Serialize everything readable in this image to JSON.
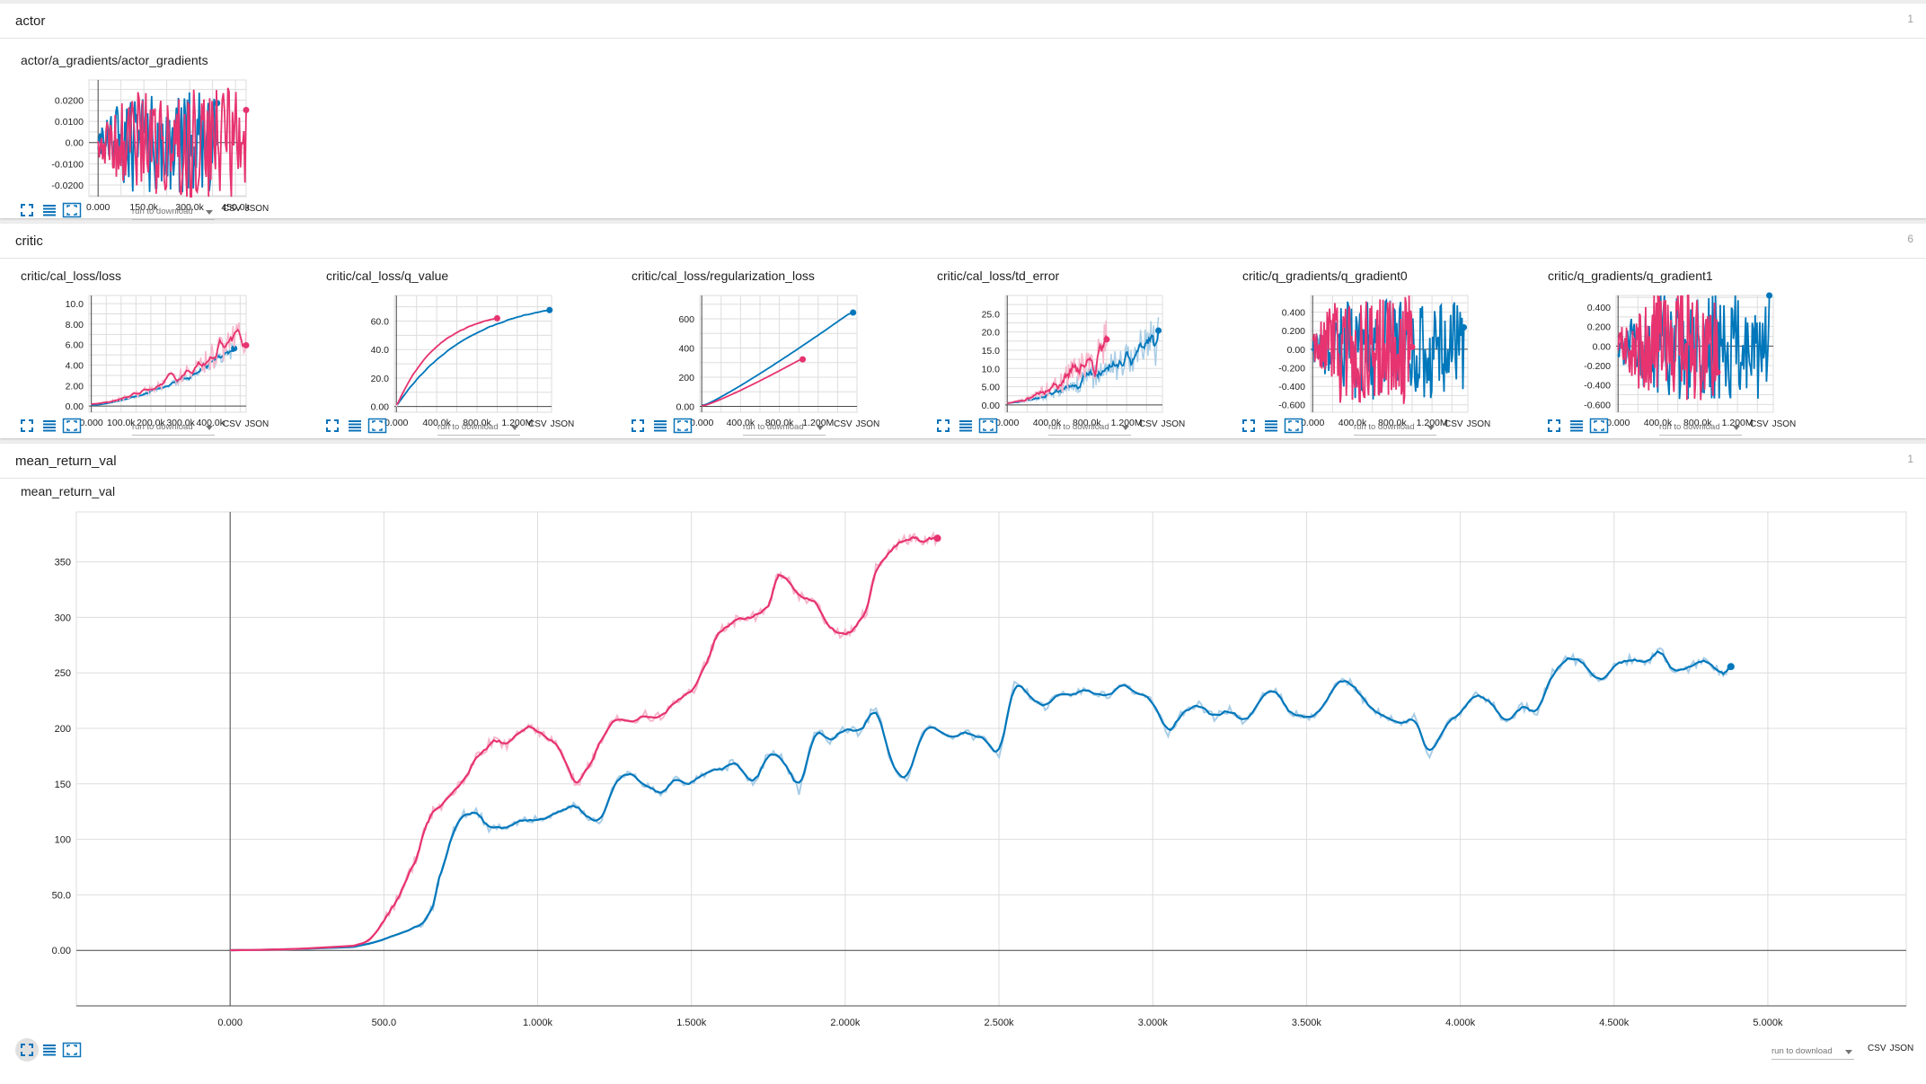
{
  "colors": {
    "blue": "#0077bb",
    "pink": "#e7336f",
    "blue_light": "#a9cde6",
    "pink_light": "#f6b7cb",
    "grid": "#dddddd",
    "axis": "#4a4a4a"
  },
  "icons": {
    "expand": "fullscreen-icon",
    "log": "list-icon",
    "fit": "fit-domain-icon"
  },
  "download": {
    "placeholder": "run to download",
    "formats": [
      "CSV",
      "JSON"
    ]
  },
  "sections": [
    {
      "title": "actor",
      "count": "1",
      "charts": [
        {
          "title": "actor/a_gradients/actor_gradients",
          "chart_data": {
            "type": "line",
            "xticks": [
              "0.000",
              "150.0k",
              "300.0k",
              "450.0k"
            ],
            "yticks": [
              "0.0200",
              "0.0100",
              "0.00",
              "-0.0100",
              "-0.0200"
            ],
            "xlim": [
              -30000,
              485000
            ],
            "ylim": [
              -0.0255,
              0.0295
            ],
            "series": [
              {
                "color": "blue",
                "x_end": 390000,
                "kind": "noise",
                "amp": 0.024,
                "seed": 3,
                "n": 120
              },
              {
                "color": "pink",
                "x_end": 485000,
                "kind": "noise",
                "amp": 0.027,
                "seed": 7,
                "n": 130
              }
            ]
          }
        }
      ]
    },
    {
      "title": "critic",
      "count": "6",
      "charts": [
        {
          "title": "critic/cal_loss/loss",
          "chart_data": {
            "type": "line",
            "xticks": [
              "0.000",
              "100.0k",
              "200.0k",
              "300.0k",
              "400.0k"
            ],
            "yticks": [
              "10.0",
              "8.00",
              "6.00",
              "4.00",
              "2.00",
              "0.00"
            ],
            "xlim": [
              -8000,
              520000
            ],
            "ylim": [
              -0.6,
              10.8
            ],
            "series": [
              {
                "color": "blue",
                "x_end": 480000,
                "kind": "growth",
                "start": 0.1,
                "end": 5.2,
                "amp": 1.1,
                "seed": 11,
                "n": 120
              },
              {
                "color": "pink",
                "x_end": 520000,
                "kind": "growth",
                "start": 0.2,
                "end": 6.5,
                "amp": 2.4,
                "seed": 13,
                "n": 130
              }
            ]
          }
        },
        {
          "title": "critic/cal_loss/q_value",
          "chart_data": {
            "type": "line",
            "xticks": [
              "0.000",
              "400.0k",
              "800.0k",
              "1.200M"
            ],
            "yticks": [
              "60.0",
              "40.0",
              "20.0",
              "0.00"
            ],
            "xlim": [
              -20000,
              1540000
            ],
            "ylim": [
              -4,
              78
            ],
            "series": [
              {
                "color": "blue",
                "x_end": 1520000,
                "kind": "saturate",
                "start": 0,
                "end": 68,
                "k": 2.1,
                "amp": 0.8,
                "seed": 17,
                "n": 160
              },
              {
                "color": "pink",
                "x_end": 1000000,
                "kind": "saturate",
                "start": 0,
                "end": 62,
                "k": 2.4,
                "amp": 0.8,
                "seed": 19,
                "n": 110
              }
            ]
          }
        },
        {
          "title": "critic/cal_loss/regularization_loss",
          "chart_data": {
            "type": "line",
            "xticks": [
              "0.000",
              "400.0k",
              "800.0k",
              "1.200M"
            ],
            "yticks": [
              "600",
              "400",
              "200",
              "0.00"
            ],
            "xlim": [
              -20000,
              1600000
            ],
            "ylim": [
              -40,
              760
            ],
            "series": [
              {
                "color": "blue",
                "x_end": 1560000,
                "kind": "curve",
                "start": 0,
                "end": 655,
                "pow": 1.12,
                "amp": 0,
                "seed": 1,
                "n": 60
              },
              {
                "color": "pink",
                "x_end": 1040000,
                "kind": "curve",
                "start": 0,
                "end": 330,
                "pow": 1.15,
                "amp": 0,
                "seed": 2,
                "n": 50
              }
            ]
          }
        },
        {
          "title": "critic/cal_loss/td_error",
          "chart_data": {
            "type": "line",
            "xticks": [
              "0.000",
              "400.0k",
              "800.0k",
              "1.200M"
            ],
            "yticks": [
              "25.0",
              "20.0",
              "15.0",
              "10.0",
              "5.00",
              "0.00"
            ],
            "xlim": [
              -20000,
              1560000
            ],
            "ylim": [
              -2,
              30
            ],
            "series": [
              {
                "color": "blue",
                "x_end": 1520000,
                "kind": "growth",
                "start": 0.5,
                "end": 16,
                "amp": 9,
                "seed": 23,
                "n": 160
              },
              {
                "color": "pink",
                "x_end": 1000000,
                "kind": "growth",
                "start": 0.5,
                "end": 14,
                "amp": 9,
                "seed": 29,
                "n": 120
              }
            ]
          }
        },
        {
          "title": "critic/q_gradients/q_gradient0",
          "chart_data": {
            "type": "line",
            "xticks": [
              "0.000",
              "400.0k",
              "800.0k",
              "1.200M"
            ],
            "yticks": [
              "0.400",
              "0.200",
              "0.00",
              "-0.200",
              "-0.400",
              "-0.600"
            ],
            "xlim": [
              -20000,
              1560000
            ],
            "ylim": [
              -0.68,
              0.58
            ],
            "series": [
              {
                "color": "blue",
                "x_end": 1520000,
                "kind": "noise",
                "amp": 0.55,
                "seed": 31,
                "n": 160
              },
              {
                "color": "pink",
                "x_end": 1000000,
                "kind": "noise",
                "amp": 0.6,
                "seed": 37,
                "n": 130
              }
            ]
          }
        },
        {
          "title": "critic/q_gradients/q_gradient1",
          "chart_data": {
            "type": "line",
            "xticks": [
              "0.000",
              "400.0k",
              "800.0k",
              "1.200M"
            ],
            "yticks": [
              "0.400",
              "0.200",
              "0.00",
              "-0.200",
              "-0.400",
              "-0.600"
            ],
            "xlim": [
              -20000,
              1560000
            ],
            "ylim": [
              -0.68,
              0.52
            ],
            "series": [
              {
                "color": "blue",
                "x_end": 1520000,
                "kind": "noise",
                "amp": 0.55,
                "seed": 41,
                "n": 160
              },
              {
                "color": "pink",
                "x_end": 1000000,
                "kind": "noise",
                "amp": 0.58,
                "seed": 43,
                "n": 130
              }
            ]
          }
        }
      ]
    },
    {
      "title": "mean_return_val",
      "count": "1",
      "charts": [
        {
          "title": "mean_return_val",
          "chart_data": {
            "type": "line",
            "xticks": [
              "0.000",
              "500.0",
              "1.000k",
              "1.500k",
              "2.000k",
              "2.500k",
              "3.000k",
              "3.500k",
              "4.000k",
              "4.500k",
              "5.000k"
            ],
            "yticks": [
              "350",
              "300",
              "250",
              "200",
              "150",
              "100",
              "50.0",
              "0.00"
            ],
            "xlim": [
              -500,
              5450
            ],
            "ylim": [
              -50,
              395
            ],
            "series": [
              {
                "color": "blue",
                "kind": "keypoints",
                "amp": 4,
                "seed": 53,
                "x": [
                  0,
                  200,
                  400,
                  450,
                  480,
                  520,
                  580,
                  620,
                  660,
                  680,
                  720,
                  760,
                  800,
                  850,
                  900,
                  950,
                  1000,
                  1050,
                  1100,
                  1150,
                  1200,
                  1250,
                  1300,
                  1350,
                  1400,
                  1450,
                  1500,
                  1550,
                  1600,
                  1650,
                  1700,
                  1750,
                  1800,
                  1850,
                  1900,
                  1950,
                  2000,
                  2050,
                  2100,
                  2150,
                  2200,
                  2250,
                  2300,
                  2350,
                  2400,
                  2450,
                  2500,
                  2550,
                  2600,
                  2650,
                  2700,
                  2750,
                  2800,
                  2850,
                  2900,
                  2950,
                  3000,
                  3050,
                  3100,
                  3150,
                  3200,
                  3250,
                  3300,
                  3350,
                  3400,
                  3450,
                  3500,
                  3550,
                  3600,
                  3650,
                  3700,
                  3750,
                  3800,
                  3850,
                  3900,
                  3950,
                  4000,
                  4050,
                  4100,
                  4150,
                  4200,
                  4250,
                  4300,
                  4350,
                  4400,
                  4450,
                  4500,
                  4550,
                  4600,
                  4650,
                  4700,
                  4750,
                  4800,
                  4850,
                  4880
                ],
                "y": [
                  0,
                  1,
                  3,
                  6,
                  8,
                  12,
                  18,
                  24,
                  40,
                  65,
                  105,
                  122,
                  125,
                  108,
                  112,
                  116,
                  118,
                  120,
                  132,
                  125,
                  112,
                  150,
                  160,
                  150,
                  140,
                  155,
                  150,
                  162,
                  163,
                  172,
                  148,
                  178,
                  172,
                  142,
                  200,
                  188,
                  200,
                  196,
                  222,
                  168,
                  150,
                  198,
                  200,
                  190,
                  195,
                  190,
                  175,
                  240,
                  230,
                  220,
                  230,
                  232,
                  235,
                  228,
                  240,
                  232,
                  225,
                  195,
                  215,
                  222,
                  210,
                  218,
                  205,
                  228,
                  235,
                  215,
                  210,
                  215,
                  245,
                  240,
                  220,
                  210,
                  205,
                  210,
                  175,
                  200,
                  215,
                  230,
                  225,
                  205,
                  220,
                  215,
                  250,
                  265,
                  258,
                  240,
                  255,
                  262,
                  258,
                  270,
                  250,
                  255,
                  265,
                  248,
                  256
                ]
              },
              {
                "color": "pink",
                "kind": "keypoints",
                "amp": 5,
                "seed": 59,
                "x": [
                  0,
                  200,
                  400,
                  450,
                  500,
                  550,
                  600,
                  630,
                  660,
                  700,
                  750,
                  800,
                  850,
                  900,
                  950,
                  980,
                  1020,
                  1050,
                  1100,
                  1130,
                  1170,
                  1200,
                  1250,
                  1300,
                  1350,
                  1400,
                  1450,
                  1500,
                  1550,
                  1580,
                  1620,
                  1650,
                  1700,
                  1750,
                  1780,
                  1800,
                  1850,
                  1900,
                  1950,
                  2000,
                  2030,
                  2070,
                  2100,
                  2150,
                  2200,
                  2230,
                  2260,
                  2300
                ],
                "y": [
                  0,
                  1,
                  4,
                  8,
                  25,
                  50,
                  80,
                  105,
                  125,
                  135,
                  150,
                  175,
                  188,
                  185,
                  198,
                  200,
                  196,
                  190,
                  162,
                  150,
                  168,
                  185,
                  210,
                  208,
                  212,
                  210,
                  222,
                  232,
                  260,
                  282,
                  295,
                  298,
                  300,
                  310,
                  340,
                  338,
                  320,
                  315,
                  290,
                  285,
                  292,
                  305,
                  345,
                  362,
                  370,
                  372,
                  368,
                  372
                ]
              }
            ]
          }
        }
      ]
    }
  ]
}
